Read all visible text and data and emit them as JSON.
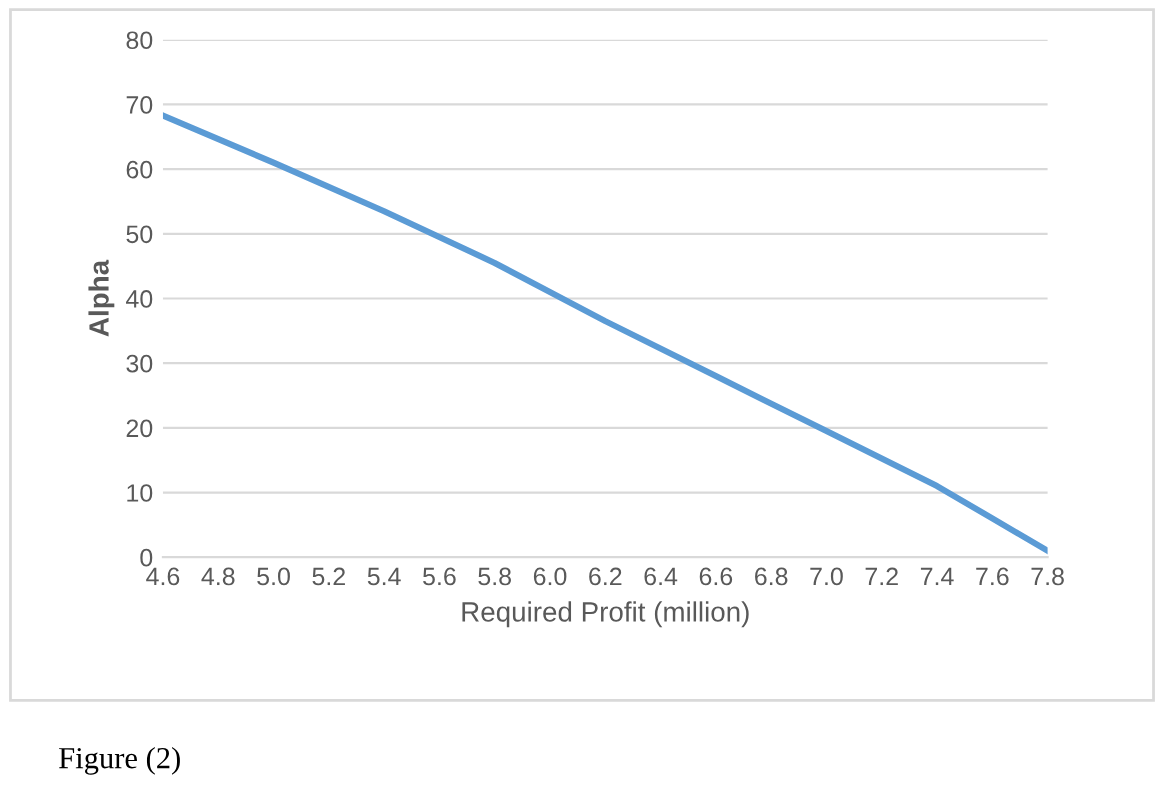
{
  "chart_data": {
    "type": "line",
    "xlabel": "Required Profit (million)",
    "ylabel": "Alpha",
    "x": [
      4.6,
      5.0,
      5.4,
      5.8,
      6.2,
      6.6,
      7.0,
      7.4,
      7.6,
      7.8
    ],
    "series": [
      {
        "color": "#5b9bd5",
        "values": [
          68.3,
          61,
          53.5,
          45.5,
          36.5,
          28,
          19.5,
          11,
          6,
          1
        ]
      }
    ],
    "xlim": [
      4.6,
      7.8
    ],
    "xticks": [
      4.6,
      4.8,
      {
        "value": 5,
        "label": "5.0"
      },
      5.2,
      5.4,
      5.6,
      5.8,
      {
        "value": 6,
        "label": "6.0"
      },
      6.2,
      6.4,
      6.6,
      6.8,
      {
        "value": 7,
        "label": "7.0"
      },
      7.2,
      7.4,
      7.6,
      7.8
    ],
    "ylim": [
      0,
      80
    ],
    "yticks": [
      0,
      10,
      20,
      30,
      40,
      50,
      60,
      70,
      80
    ],
    "grid": "y",
    "marker": "none",
    "line_style": "solid",
    "legend": false,
    "annotations": [
      "Figure (2)"
    ]
  }
}
